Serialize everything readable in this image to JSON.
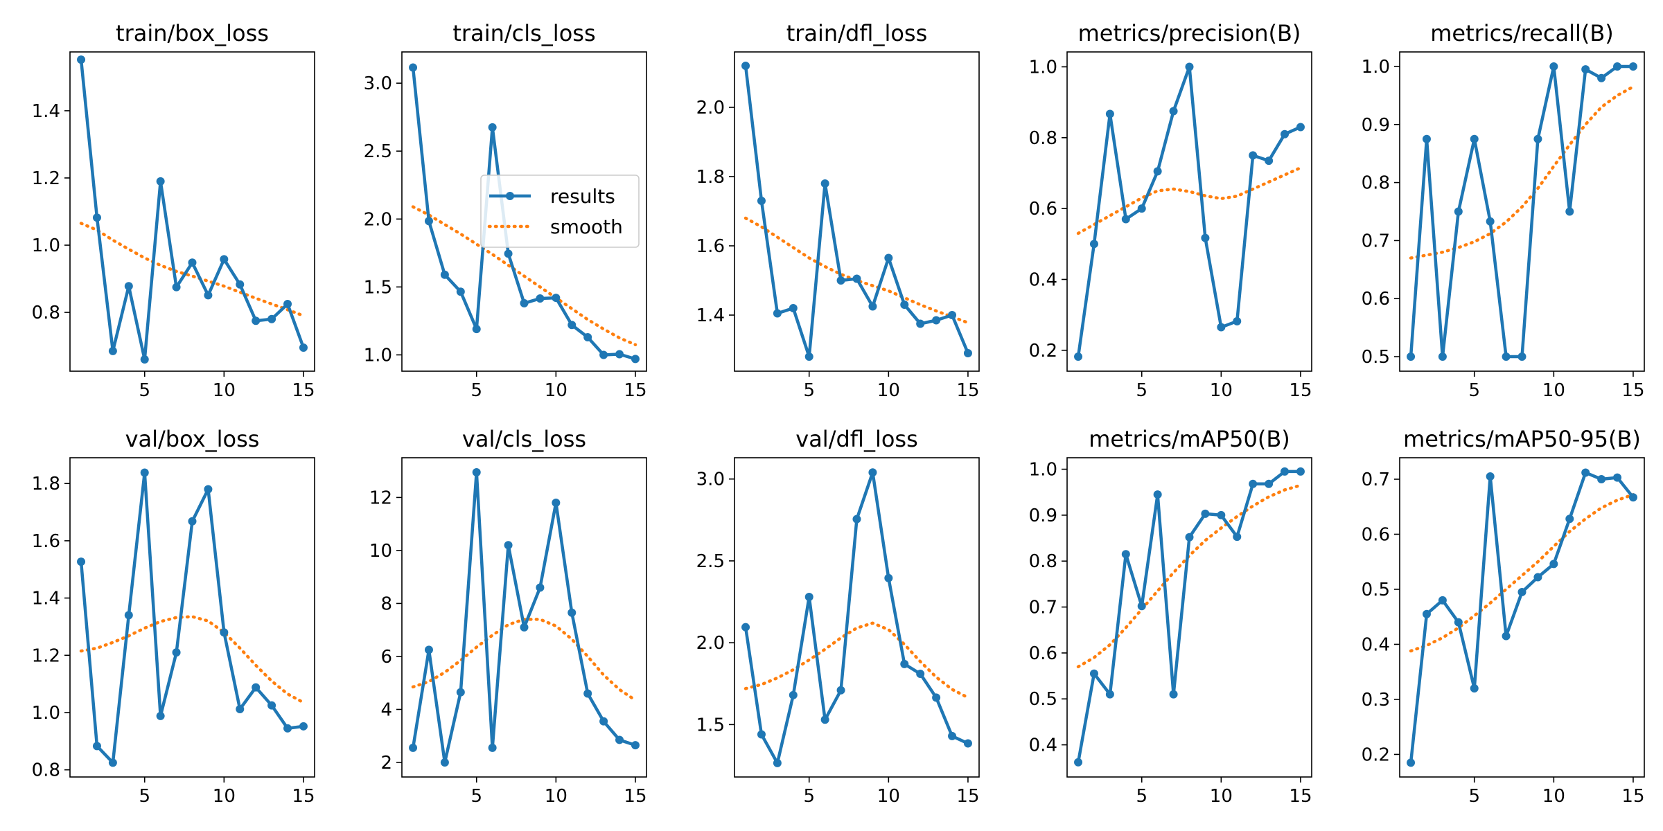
{
  "colors": {
    "results": "#1f77b4",
    "smooth": "#ff7f0e",
    "axis": "#000000",
    "background": "#ffffff"
  },
  "legend": {
    "placement": "center-right",
    "panel_index": 1,
    "entries": [
      "results",
      "smooth"
    ]
  },
  "chart_data": [
    {
      "type": "line",
      "title": "train/box_loss",
      "x": [
        1,
        2,
        3,
        4,
        5,
        6,
        7,
        8,
        9,
        10,
        11,
        12,
        13,
        14,
        15
      ],
      "xlim": [
        0.3,
        15.7
      ],
      "ylim": [
        0.625,
        1.575
      ],
      "xticks": [
        5,
        10,
        15
      ],
      "xtick_labels": [
        "5",
        "10",
        "15"
      ],
      "yticks": [
        0.8,
        1.0,
        1.2,
        1.4
      ],
      "ytick_labels": [
        "0.8",
        "1.0",
        "1.2",
        "1.4"
      ],
      "series": [
        {
          "name": "results",
          "style": "solid-marker",
          "values": [
            1.552,
            1.082,
            0.685,
            0.878,
            0.66,
            1.19,
            0.875,
            0.948,
            0.851,
            0.958,
            0.883,
            0.775,
            0.78,
            0.825,
            0.695
          ]
        },
        {
          "name": "smooth",
          "style": "dotted",
          "values": [
            1.065,
            1.045,
            1.015,
            0.988,
            0.962,
            0.94,
            0.922,
            0.908,
            0.893,
            0.878,
            0.86,
            0.842,
            0.825,
            0.808,
            0.79
          ]
        }
      ]
    },
    {
      "type": "line",
      "title": "train/cls_loss",
      "x": [
        1,
        2,
        3,
        4,
        5,
        6,
        7,
        8,
        9,
        10,
        11,
        12,
        13,
        14,
        15
      ],
      "xlim": [
        0.3,
        15.7
      ],
      "ylim": [
        0.88,
        3.23
      ],
      "xticks": [
        5,
        10,
        15
      ],
      "xtick_labels": [
        "5",
        "10",
        "15"
      ],
      "yticks": [
        1.0,
        1.5,
        2.0,
        2.5,
        3.0
      ],
      "ytick_labels": [
        "1.0",
        "1.5",
        "2.0",
        "2.5",
        "3.0"
      ],
      "series": [
        {
          "name": "results",
          "style": "solid-marker",
          "values": [
            3.115,
            1.985,
            1.59,
            1.465,
            1.19,
            2.675,
            1.745,
            1.38,
            1.415,
            1.42,
            1.22,
            1.13,
            1.0,
            1.005,
            0.97
          ]
        },
        {
          "name": "smooth",
          "style": "dotted",
          "values": [
            2.09,
            2.03,
            1.96,
            1.89,
            1.815,
            1.74,
            1.66,
            1.58,
            1.5,
            1.42,
            1.34,
            1.26,
            1.19,
            1.125,
            1.075
          ]
        }
      ]
    },
    {
      "type": "line",
      "title": "train/dfl_loss",
      "x": [
        1,
        2,
        3,
        4,
        5,
        6,
        7,
        8,
        9,
        10,
        11,
        12,
        13,
        14,
        15
      ],
      "xlim": [
        0.3,
        15.7
      ],
      "ylim": [
        1.238,
        2.16
      ],
      "xticks": [
        5,
        10,
        15
      ],
      "xtick_labels": [
        "5",
        "10",
        "15"
      ],
      "yticks": [
        1.4,
        1.6,
        1.8,
        2.0
      ],
      "ytick_labels": [
        "1.4",
        "1.6",
        "1.8",
        "2.0"
      ],
      "series": [
        {
          "name": "results",
          "style": "solid-marker",
          "values": [
            2.12,
            1.73,
            1.405,
            1.42,
            1.28,
            1.78,
            1.5,
            1.505,
            1.425,
            1.565,
            1.43,
            1.375,
            1.385,
            1.4,
            1.29
          ]
        },
        {
          "name": "smooth",
          "style": "dotted",
          "values": [
            1.68,
            1.655,
            1.625,
            1.595,
            1.565,
            1.54,
            1.518,
            1.5,
            1.485,
            1.47,
            1.45,
            1.43,
            1.412,
            1.395,
            1.378
          ]
        }
      ]
    },
    {
      "type": "line",
      "title": "metrics/precision(B)",
      "x": [
        1,
        2,
        3,
        4,
        5,
        6,
        7,
        8,
        9,
        10,
        11,
        12,
        13,
        14,
        15
      ],
      "xlim": [
        0.3,
        15.7
      ],
      "ylim": [
        0.141,
        1.042
      ],
      "xticks": [
        5,
        10,
        15
      ],
      "xtick_labels": [
        "5",
        "10",
        "15"
      ],
      "yticks": [
        0.2,
        0.4,
        0.6,
        0.8,
        1.0
      ],
      "ytick_labels": [
        "0.2",
        "0.4",
        "0.6",
        "0.8",
        "1.0"
      ],
      "series": [
        {
          "name": "results",
          "style": "solid-marker",
          "values": [
            0.182,
            0.5,
            0.867,
            0.57,
            0.6,
            0.705,
            0.875,
            1.0,
            0.517,
            0.265,
            0.282,
            0.75,
            0.735,
            0.81,
            0.83
          ]
        },
        {
          "name": "smooth",
          "style": "dotted",
          "values": [
            0.53,
            0.555,
            0.58,
            0.605,
            0.63,
            0.65,
            0.655,
            0.648,
            0.636,
            0.628,
            0.635,
            0.655,
            0.675,
            0.695,
            0.715
          ]
        }
      ]
    },
    {
      "type": "line",
      "title": "metrics/recall(B)",
      "x": [
        1,
        2,
        3,
        4,
        5,
        6,
        7,
        8,
        9,
        10,
        11,
        12,
        13,
        14,
        15
      ],
      "xlim": [
        0.3,
        15.7
      ],
      "ylim": [
        0.475,
        1.025
      ],
      "xticks": [
        5,
        10,
        15
      ],
      "xtick_labels": [
        "5",
        "10",
        "15"
      ],
      "yticks": [
        0.5,
        0.6,
        0.7,
        0.8,
        0.9,
        1.0
      ],
      "ytick_labels": [
        "0.5",
        "0.6",
        "0.7",
        "0.8",
        "0.9",
        "1.0"
      ],
      "series": [
        {
          "name": "results",
          "style": "solid-marker",
          "values": [
            0.5,
            0.875,
            0.5,
            0.75,
            0.875,
            0.733,
            0.5,
            0.5,
            0.875,
            1.0,
            0.75,
            0.995,
            0.98,
            1.0,
            1.0
          ]
        },
        {
          "name": "smooth",
          "style": "dotted",
          "values": [
            0.67,
            0.675,
            0.68,
            0.688,
            0.698,
            0.712,
            0.732,
            0.758,
            0.79,
            0.828,
            0.865,
            0.9,
            0.93,
            0.95,
            0.965
          ]
        }
      ]
    },
    {
      "type": "line",
      "title": "val/box_loss",
      "x": [
        1,
        2,
        3,
        4,
        5,
        6,
        7,
        8,
        9,
        10,
        11,
        12,
        13,
        14,
        15
      ],
      "xlim": [
        0.3,
        15.7
      ],
      "ylim": [
        0.775,
        1.89
      ],
      "xticks": [
        5,
        10,
        15
      ],
      "xtick_labels": [
        "5",
        "10",
        "15"
      ],
      "yticks": [
        0.8,
        1.0,
        1.2,
        1.4,
        1.6,
        1.8
      ],
      "ytick_labels": [
        "0.8",
        "1.0",
        "1.2",
        "1.4",
        "1.6",
        "1.8"
      ],
      "series": [
        {
          "name": "results",
          "style": "solid-marker",
          "values": [
            1.527,
            0.883,
            0.825,
            1.34,
            1.838,
            0.988,
            1.21,
            1.668,
            1.78,
            1.28,
            1.012,
            1.088,
            1.025,
            0.945,
            0.952
          ]
        },
        {
          "name": "smooth",
          "style": "dotted",
          "values": [
            1.215,
            1.225,
            1.245,
            1.268,
            1.295,
            1.318,
            1.332,
            1.335,
            1.32,
            1.28,
            1.225,
            1.165,
            1.11,
            1.065,
            1.035
          ]
        }
      ]
    },
    {
      "type": "line",
      "title": "val/cls_loss",
      "x": [
        1,
        2,
        3,
        4,
        5,
        6,
        7,
        8,
        9,
        10,
        11,
        12,
        13,
        14,
        15
      ],
      "xlim": [
        0.3,
        15.7
      ],
      "ylim": [
        1.45,
        13.5
      ],
      "xticks": [
        5,
        10,
        15
      ],
      "xtick_labels": [
        "5",
        "10",
        "15"
      ],
      "yticks": [
        2,
        4,
        6,
        8,
        10,
        12
      ],
      "ytick_labels": [
        "2",
        "4",
        "6",
        "8",
        "10",
        "12"
      ],
      "series": [
        {
          "name": "results",
          "style": "solid-marker",
          "values": [
            2.55,
            6.25,
            2.0,
            4.65,
            12.95,
            2.55,
            10.2,
            7.1,
            8.6,
            11.8,
            7.65,
            4.6,
            3.55,
            2.85,
            2.65
          ]
        },
        {
          "name": "smooth",
          "style": "dotted",
          "values": [
            4.85,
            5.05,
            5.4,
            5.85,
            6.35,
            6.8,
            7.2,
            7.4,
            7.4,
            7.15,
            6.65,
            6.0,
            5.3,
            4.75,
            4.35
          ]
        }
      ]
    },
    {
      "type": "line",
      "title": "val/dfl_loss",
      "x": [
        1,
        2,
        3,
        4,
        5,
        6,
        7,
        8,
        9,
        10,
        11,
        12,
        13,
        14,
        15
      ],
      "xlim": [
        0.3,
        15.7
      ],
      "ylim": [
        1.18,
        3.13
      ],
      "xticks": [
        5,
        10,
        15
      ],
      "xtick_labels": [
        "5",
        "10",
        "15"
      ],
      "yticks": [
        1.5,
        2.0,
        2.5,
        3.0
      ],
      "ytick_labels": [
        "1.5",
        "2.0",
        "2.5",
        "3.0"
      ],
      "series": [
        {
          "name": "results",
          "style": "solid-marker",
          "values": [
            2.095,
            1.44,
            1.265,
            1.68,
            2.28,
            1.53,
            1.71,
            2.755,
            3.04,
            2.395,
            1.87,
            1.81,
            1.665,
            1.43,
            1.385
          ]
        },
        {
          "name": "smooth",
          "style": "dotted",
          "values": [
            1.72,
            1.745,
            1.785,
            1.835,
            1.895,
            1.96,
            2.03,
            2.09,
            2.12,
            2.08,
            1.99,
            1.885,
            1.79,
            1.715,
            1.665
          ]
        }
      ]
    },
    {
      "type": "line",
      "title": "metrics/mAP50(B)",
      "x": [
        1,
        2,
        3,
        4,
        5,
        6,
        7,
        8,
        9,
        10,
        11,
        12,
        13,
        14,
        15
      ],
      "xlim": [
        0.3,
        15.7
      ],
      "ylim": [
        0.33,
        1.025
      ],
      "xticks": [
        5,
        10,
        15
      ],
      "xtick_labels": [
        "5",
        "10",
        "15"
      ],
      "yticks": [
        0.4,
        0.5,
        0.6,
        0.7,
        0.8,
        0.9,
        1.0
      ],
      "ytick_labels": [
        "0.4",
        "0.5",
        "0.6",
        "0.7",
        "0.8",
        "0.9",
        "1.0"
      ],
      "series": [
        {
          "name": "results",
          "style": "solid-marker",
          "values": [
            0.362,
            0.555,
            0.51,
            0.815,
            0.702,
            0.945,
            0.51,
            0.852,
            0.903,
            0.9,
            0.853,
            0.968,
            0.968,
            0.995,
            0.995
          ]
        },
        {
          "name": "smooth",
          "style": "dotted",
          "values": [
            0.57,
            0.59,
            0.618,
            0.655,
            0.695,
            0.735,
            0.775,
            0.812,
            0.845,
            0.872,
            0.897,
            0.92,
            0.94,
            0.955,
            0.965
          ]
        }
      ]
    },
    {
      "type": "line",
      "title": "metrics/mAP50-95(B)",
      "x": [
        1,
        2,
        3,
        4,
        5,
        6,
        7,
        8,
        9,
        10,
        11,
        12,
        13,
        14,
        15
      ],
      "xlim": [
        0.3,
        15.7
      ],
      "ylim": [
        0.159,
        0.739
      ],
      "xticks": [
        5,
        10,
        15
      ],
      "xtick_labels": [
        "5",
        "10",
        "15"
      ],
      "yticks": [
        0.2,
        0.3,
        0.4,
        0.5,
        0.6,
        0.7
      ],
      "ytick_labels": [
        "0.2",
        "0.3",
        "0.4",
        "0.5",
        "0.6",
        "0.7"
      ],
      "series": [
        {
          "name": "results",
          "style": "solid-marker",
          "values": [
            0.185,
            0.455,
            0.48,
            0.44,
            0.32,
            0.705,
            0.415,
            0.495,
            0.522,
            0.546,
            0.628,
            0.712,
            0.7,
            0.703,
            0.667
          ]
        },
        {
          "name": "smooth",
          "style": "dotted",
          "values": [
            0.388,
            0.398,
            0.412,
            0.43,
            0.452,
            0.475,
            0.5,
            0.525,
            0.55,
            0.578,
            0.605,
            0.628,
            0.648,
            0.662,
            0.672
          ]
        }
      ]
    }
  ]
}
